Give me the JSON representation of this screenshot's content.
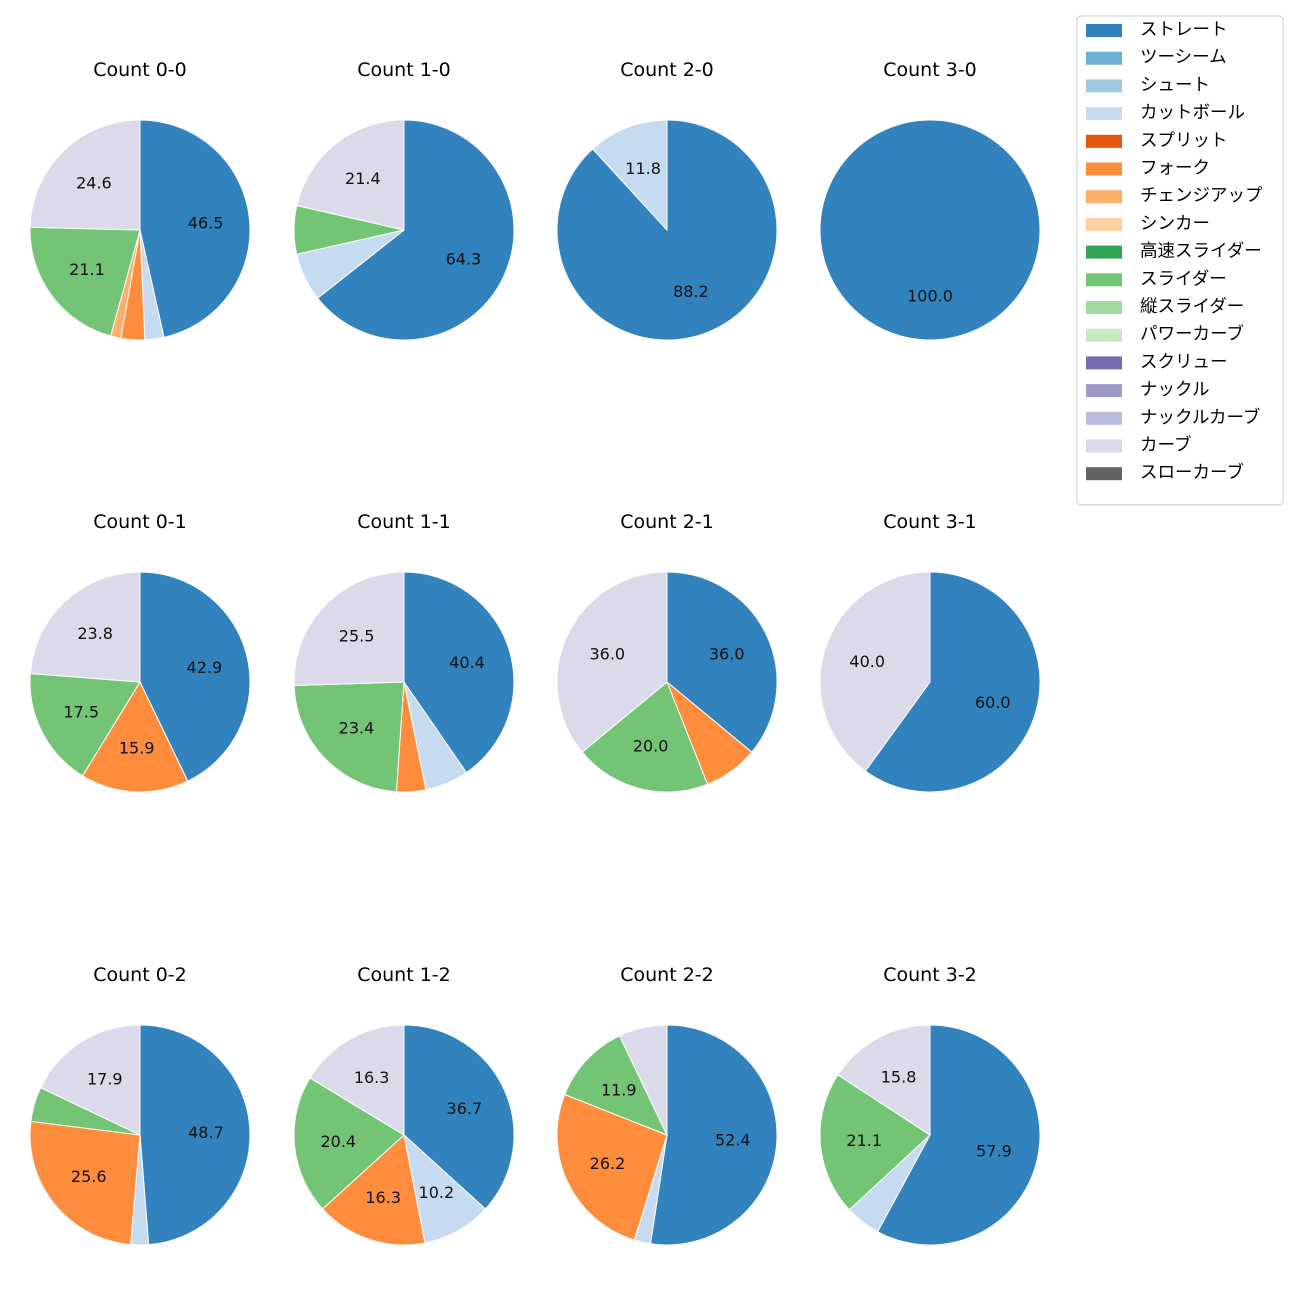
{
  "colors": {
    "ストレート": "#3182bd",
    "ツーシーム": "#6baed6",
    "シュート": "#9ecae1",
    "カットボール": "#c6dbef",
    "スプリット": "#e6550d",
    "フォーク": "#fd8d3c",
    "チェンジアップ": "#fdae6b",
    "シンカー": "#fdd0a2",
    "高速スライダー": "#31a354",
    "スライダー": "#74c476",
    "縦スライダー": "#a1d99b",
    "パワーカーブ": "#c7e9c0",
    "スクリュー": "#756bb1",
    "ナックル": "#9e9ac8",
    "ナックルカーブ": "#bcbddc",
    "カーブ": "#dadaeb",
    "スローカーブ": "#636363"
  },
  "chart_data": {
    "type": "pie",
    "legend": {
      "placement": "top-right",
      "entries": [
        "ストレート",
        "ツーシーム",
        "シュート",
        "カットボール",
        "スプリット",
        "フォーク",
        "チェンジアップ",
        "シンカー",
        "高速スライダー",
        "スライダー",
        "縦スライダー",
        "パワーカーブ",
        "スクリュー",
        "ナックル",
        "ナックルカーブ",
        "カーブ",
        "スローカーブ"
      ]
    },
    "pies": [
      {
        "title": "Count 0-0",
        "slices": [
          {
            "name": "ストレート",
            "value": 46.5,
            "label": "46.5"
          },
          {
            "name": "カットボール",
            "value": 2.8,
            "label": ""
          },
          {
            "name": "フォーク",
            "value": 3.5,
            "label": ""
          },
          {
            "name": "チェンジアップ",
            "value": 1.5,
            "label": ""
          },
          {
            "name": "スライダー",
            "value": 21.1,
            "label": "21.1"
          },
          {
            "name": "カーブ",
            "value": 24.6,
            "label": "24.6"
          }
        ]
      },
      {
        "title": "Count 1-0",
        "slices": [
          {
            "name": "ストレート",
            "value": 64.3,
            "label": "64.3"
          },
          {
            "name": "カットボール",
            "value": 7.1,
            "label": ""
          },
          {
            "name": "スライダー",
            "value": 7.1,
            "label": ""
          },
          {
            "name": "カーブ",
            "value": 21.4,
            "label": "21.4"
          }
        ]
      },
      {
        "title": "Count 2-0",
        "slices": [
          {
            "name": "ストレート",
            "value": 88.2,
            "label": "88.2"
          },
          {
            "name": "カットボール",
            "value": 11.8,
            "label": "11.8"
          }
        ]
      },
      {
        "title": "Count 3-0",
        "slices": [
          {
            "name": "ストレート",
            "value": 100.0,
            "label": "100.0"
          }
        ]
      },
      {
        "title": "Count 0-1",
        "slices": [
          {
            "name": "ストレート",
            "value": 42.9,
            "label": "42.9"
          },
          {
            "name": "フォーク",
            "value": 15.9,
            "label": "15.9"
          },
          {
            "name": "スライダー",
            "value": 17.5,
            "label": "17.5"
          },
          {
            "name": "カーブ",
            "value": 23.8,
            "label": "23.8"
          }
        ]
      },
      {
        "title": "Count 1-1",
        "slices": [
          {
            "name": "ストレート",
            "value": 40.4,
            "label": "40.4"
          },
          {
            "name": "カットボール",
            "value": 6.4,
            "label": ""
          },
          {
            "name": "フォーク",
            "value": 4.3,
            "label": ""
          },
          {
            "name": "スライダー",
            "value": 23.4,
            "label": "23.4"
          },
          {
            "name": "カーブ",
            "value": 25.5,
            "label": "25.5"
          }
        ]
      },
      {
        "title": "Count 2-1",
        "slices": [
          {
            "name": "ストレート",
            "value": 36.0,
            "label": "36.0"
          },
          {
            "name": "フォーク",
            "value": 8.0,
            "label": ""
          },
          {
            "name": "スライダー",
            "value": 20.0,
            "label": "20.0"
          },
          {
            "name": "カーブ",
            "value": 36.0,
            "label": "36.0"
          }
        ]
      },
      {
        "title": "Count 3-1",
        "slices": [
          {
            "name": "ストレート",
            "value": 60.0,
            "label": "60.0"
          },
          {
            "name": "カーブ",
            "value": 40.0,
            "label": "40.0"
          }
        ]
      },
      {
        "title": "Count 0-2",
        "slices": [
          {
            "name": "ストレート",
            "value": 48.7,
            "label": "48.7"
          },
          {
            "name": "カットボール",
            "value": 2.6,
            "label": ""
          },
          {
            "name": "フォーク",
            "value": 25.6,
            "label": "25.6"
          },
          {
            "name": "スライダー",
            "value": 5.1,
            "label": ""
          },
          {
            "name": "カーブ",
            "value": 17.9,
            "label": "17.9"
          }
        ]
      },
      {
        "title": "Count 1-2",
        "slices": [
          {
            "name": "ストレート",
            "value": 36.7,
            "label": "36.7"
          },
          {
            "name": "カットボール",
            "value": 10.2,
            "label": "10.2"
          },
          {
            "name": "フォーク",
            "value": 16.3,
            "label": "16.3"
          },
          {
            "name": "スライダー",
            "value": 20.4,
            "label": "20.4"
          },
          {
            "name": "カーブ",
            "value": 16.3,
            "label": "16.3"
          }
        ]
      },
      {
        "title": "Count 2-2",
        "slices": [
          {
            "name": "ストレート",
            "value": 52.4,
            "label": "52.4"
          },
          {
            "name": "カットボール",
            "value": 2.4,
            "label": ""
          },
          {
            "name": "フォーク",
            "value": 26.2,
            "label": "26.2"
          },
          {
            "name": "スライダー",
            "value": 11.9,
            "label": "11.9"
          },
          {
            "name": "カーブ",
            "value": 7.1,
            "label": ""
          }
        ]
      },
      {
        "title": "Count 3-2",
        "slices": [
          {
            "name": "ストレート",
            "value": 57.9,
            "label": "57.9"
          },
          {
            "name": "カットボール",
            "value": 5.2,
            "label": ""
          },
          {
            "name": "スライダー",
            "value": 21.1,
            "label": "21.1"
          },
          {
            "name": "カーブ",
            "value": 15.8,
            "label": "15.8"
          }
        ]
      }
    ]
  }
}
